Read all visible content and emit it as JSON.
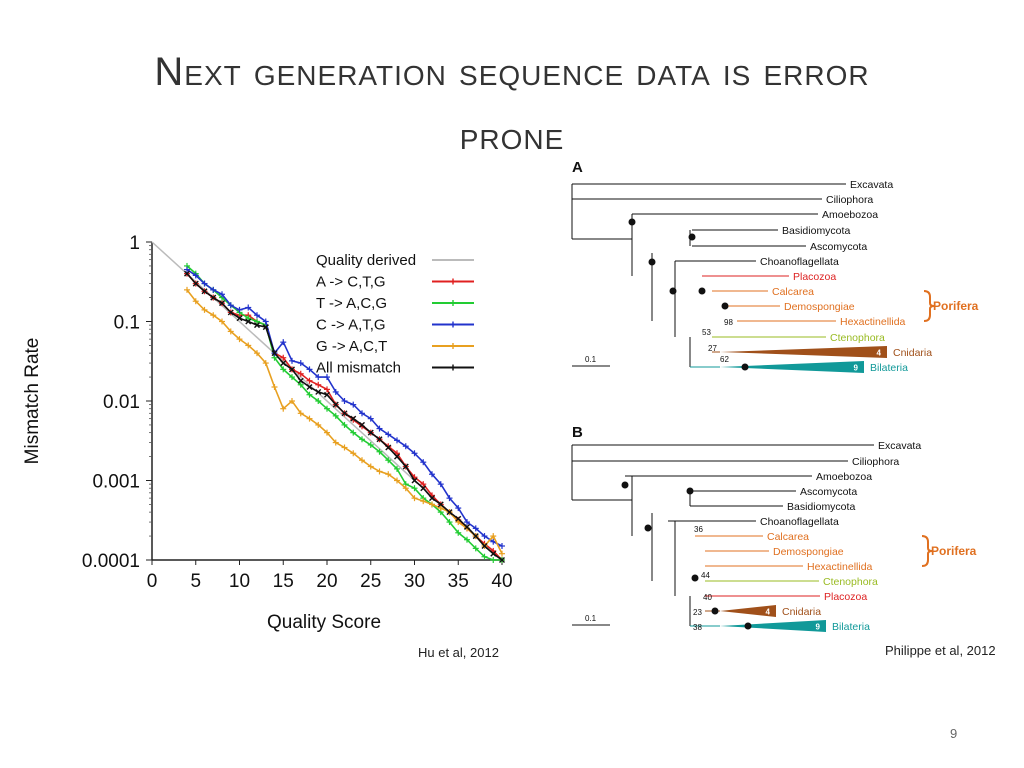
{
  "slide": {
    "title_line1": "Next generation sequence data is error",
    "title_line2": "prone",
    "left_caption": "Hu et al, 2012",
    "right_caption": "Philippe et al, 2012",
    "page_number": "9"
  },
  "chart_data": [
    {
      "type": "line",
      "title": "",
      "xlabel": "Quality Score",
      "ylabel": "Mismatch Rate",
      "xlim": [
        0,
        40
      ],
      "ylim": [
        0.0001,
        1
      ],
      "yscale": "log",
      "xticks": [
        "0",
        "5",
        "10",
        "15",
        "20",
        "25",
        "30",
        "35",
        "40"
      ],
      "yticks": [
        "0.0001",
        "0.001",
        "0.01",
        "0.1",
        "1"
      ],
      "legend_position": "top-right",
      "x": [
        4,
        5,
        6,
        7,
        8,
        9,
        10,
        11,
        12,
        13,
        14,
        15,
        16,
        17,
        18,
        19,
        20,
        21,
        22,
        23,
        24,
        25,
        26,
        27,
        28,
        29,
        30,
        31,
        32,
        33,
        34,
        35,
        36,
        37,
        38,
        39,
        40
      ],
      "series": [
        {
          "name": "Quality derived",
          "color": "#bbbbbb",
          "style": "line",
          "x": [
            0,
            40
          ],
          "values": [
            1,
            0.0001
          ]
        },
        {
          "name": "A -> C,T,G",
          "color": "#e02020",
          "values": [
            0.4,
            0.3,
            0.24,
            0.2,
            0.17,
            0.13,
            0.12,
            0.12,
            0.1,
            0.09,
            0.04,
            0.035,
            0.025,
            0.022,
            0.018,
            0.016,
            0.014,
            0.009,
            0.007,
            0.0058,
            0.0048,
            0.004,
            0.0033,
            0.0027,
            0.0022,
            0.0015,
            0.0011,
            0.0009,
            0.00065,
            0.0005,
            0.0004,
            0.00032,
            0.00025,
            0.0002,
            0.00016,
            0.00013,
            0.0001
          ]
        },
        {
          "name": "T -> A,C,G",
          "color": "#22cc33",
          "values": [
            0.5,
            0.4,
            0.3,
            0.25,
            0.2,
            0.16,
            0.13,
            0.11,
            0.1,
            0.09,
            0.035,
            0.025,
            0.02,
            0.016,
            0.012,
            0.01,
            0.008,
            0.0065,
            0.005,
            0.004,
            0.0033,
            0.0028,
            0.0023,
            0.0018,
            0.0014,
            0.0009,
            0.0008,
            0.0006,
            0.0005,
            0.0004,
            0.0003,
            0.00022,
            0.00018,
            0.00014,
            0.00011,
            0.0001,
            0.0001
          ]
        },
        {
          "name": "C -> A,T,G",
          "color": "#2233cc",
          "values": [
            0.45,
            0.38,
            0.3,
            0.25,
            0.22,
            0.16,
            0.14,
            0.15,
            0.12,
            0.1,
            0.04,
            0.055,
            0.032,
            0.03,
            0.025,
            0.02,
            0.02,
            0.013,
            0.01,
            0.009,
            0.007,
            0.006,
            0.0045,
            0.0038,
            0.0032,
            0.0027,
            0.0022,
            0.0017,
            0.0012,
            0.0009,
            0.0006,
            0.00045,
            0.0003,
            0.00025,
            0.0002,
            0.00017,
            0.00015
          ]
        },
        {
          "name": "G -> A,C,T",
          "color": "#e8a020",
          "values": [
            0.25,
            0.18,
            0.14,
            0.12,
            0.1,
            0.075,
            0.06,
            0.05,
            0.04,
            0.03,
            0.015,
            0.008,
            0.01,
            0.007,
            0.006,
            0.005,
            0.004,
            0.003,
            0.0026,
            0.0022,
            0.0018,
            0.0015,
            0.0013,
            0.0012,
            0.001,
            0.0008,
            0.0006,
            0.00055,
            0.0005,
            0.00045,
            0.0004,
            0.0003,
            0.00025,
            0.0002,
            0.00015,
            0.0002,
            0.00012
          ]
        },
        {
          "name": "All mismatch",
          "color": "#111111",
          "values": [
            0.4,
            0.3,
            0.24,
            0.2,
            0.17,
            0.13,
            0.11,
            0.1,
            0.09,
            0.085,
            0.04,
            0.03,
            0.025,
            0.018,
            0.015,
            0.013,
            0.012,
            0.009,
            0.007,
            0.006,
            0.005,
            0.004,
            0.0033,
            0.0026,
            0.002,
            0.0015,
            0.001,
            0.0008,
            0.0006,
            0.0005,
            0.0004,
            0.00033,
            0.00026,
            0.0002,
            0.00015,
            0.00012,
            0.0001
          ]
        }
      ]
    },
    {
      "type": "tree",
      "panels": [
        {
          "label": "A",
          "scale_label": "0.1",
          "leaves": [
            {
              "name": "Excavata",
              "color": "#111111"
            },
            {
              "name": "Ciliophora",
              "color": "#111111"
            },
            {
              "name": "Amoebozoa",
              "color": "#111111"
            },
            {
              "name": "Basidiomycota",
              "color": "#111111"
            },
            {
              "name": "Ascomycota",
              "color": "#111111"
            },
            {
              "name": "Choanoflagellata",
              "color": "#111111"
            },
            {
              "name": "Placozoa",
              "color": "#dd2222"
            },
            {
              "name": "Calcarea",
              "color": "#e07020"
            },
            {
              "name": "Demospongiae",
              "color": "#e07020"
            },
            {
              "name": "Hexactinellida",
              "color": "#e07020"
            },
            {
              "name": "Ctenophora",
              "color": "#99bb22"
            },
            {
              "name": "Cnidaria",
              "color": "#a0501a",
              "clade_count": "4"
            },
            {
              "name": "Bilateria",
              "color": "#119999",
              "clade_count": "9"
            }
          ],
          "group_label": "Porifera",
          "group_color": "#e07020",
          "support_values": [
            "98",
            "53",
            "27",
            "62"
          ]
        },
        {
          "label": "B",
          "scale_label": "0.1",
          "leaves": [
            {
              "name": "Excavata",
              "color": "#111111"
            },
            {
              "name": "Ciliophora",
              "color": "#111111"
            },
            {
              "name": "Amoebozoa",
              "color": "#111111"
            },
            {
              "name": "Ascomycota",
              "color": "#111111"
            },
            {
              "name": "Basidiomycota",
              "color": "#111111"
            },
            {
              "name": "Choanoflagellata",
              "color": "#111111"
            },
            {
              "name": "Calcarea",
              "color": "#e07020"
            },
            {
              "name": "Demospongiae",
              "color": "#e07020"
            },
            {
              "name": "Hexactinellida",
              "color": "#e07020"
            },
            {
              "name": "Ctenophora",
              "color": "#99bb22"
            },
            {
              "name": "Placozoa",
              "color": "#dd2222"
            },
            {
              "name": "Cnidaria",
              "color": "#a0501a",
              "clade_count": "4"
            },
            {
              "name": "Bilateria",
              "color": "#119999",
              "clade_count": "9"
            }
          ],
          "group_label": "Porifera",
          "group_color": "#e07020",
          "support_values": [
            "36",
            "44",
            "40",
            "23",
            "38"
          ]
        }
      ]
    }
  ]
}
